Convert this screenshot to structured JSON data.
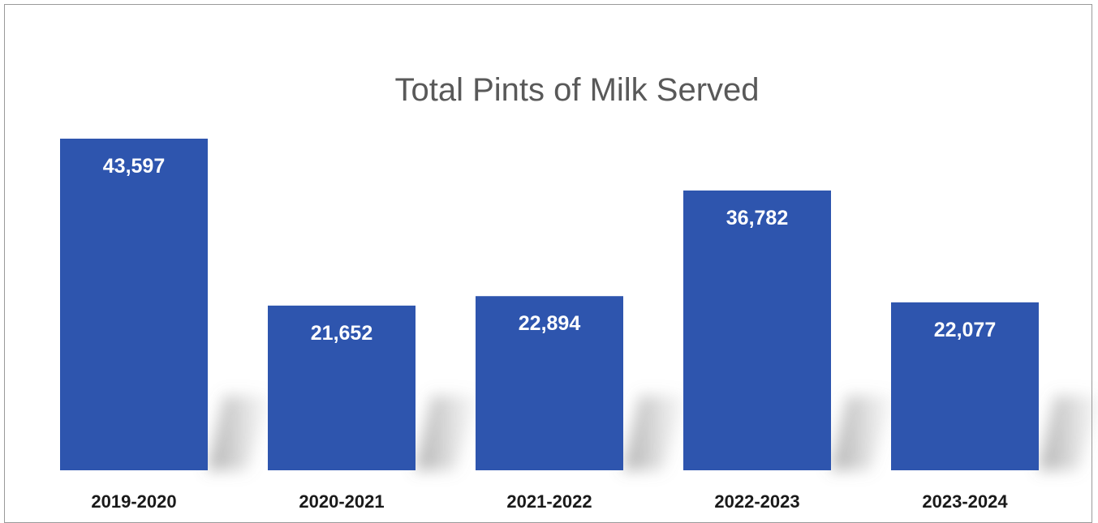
{
  "chart_data": {
    "type": "bar",
    "title": "Total Pints of Milk Served",
    "categories": [
      "2019-2020",
      "2020-2021",
      "2021-2022",
      "2022-2023",
      "2023-2024"
    ],
    "values": [
      43597,
      21652,
      22894,
      36782,
      22077
    ],
    "value_labels": [
      "43,597",
      "21,652",
      "22,894",
      "36,782",
      "22,077"
    ],
    "xlabel": "",
    "ylabel": "",
    "grid": false,
    "legend": "none",
    "colors": {
      "bar": "#2E55AE",
      "title": "#595959",
      "value_label": "#ffffff",
      "category_label": "#1a1a1a"
    }
  }
}
